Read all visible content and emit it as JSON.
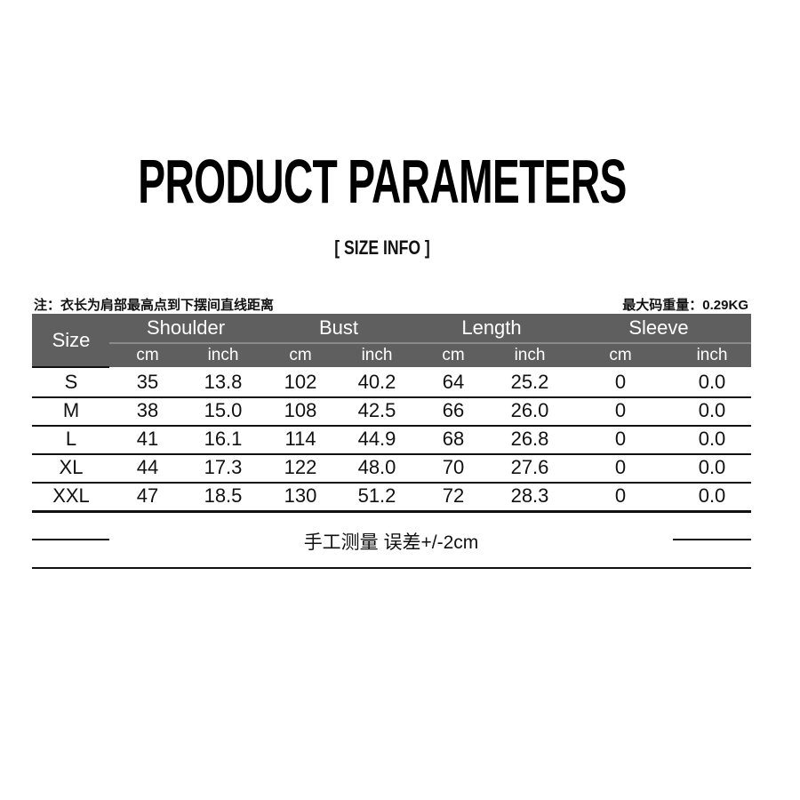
{
  "title": "PRODUCT PARAMETERS",
  "subtitle": "[ SIZE INFO ]",
  "note_left": "注：衣长为肩部最高点到下摆间直线距离",
  "note_right": "最大码重量：0.29KG",
  "table": {
    "size_header": "Size",
    "groups": [
      "Shoulder",
      "Bust",
      "Length",
      "Sleeve"
    ],
    "units": [
      "cm",
      "inch",
      "cm",
      "inch",
      "cm",
      "inch",
      "cm",
      "inch"
    ],
    "rows": [
      [
        "S",
        "35",
        "13.8",
        "102",
        "40.2",
        "64",
        "25.2",
        "0",
        "0.0"
      ],
      [
        "M",
        "38",
        "15.0",
        "108",
        "42.5",
        "66",
        "26.0",
        "0",
        "0.0"
      ],
      [
        "L",
        "41",
        "16.1",
        "114",
        "44.9",
        "68",
        "26.8",
        "0",
        "0.0"
      ],
      [
        "XL",
        "44",
        "17.3",
        "122",
        "48.0",
        "70",
        "27.6",
        "0",
        "0.0"
      ],
      [
        "XXL",
        "47",
        "18.5",
        "130",
        "51.2",
        "72",
        "28.3",
        "0",
        "0.0"
      ]
    ]
  },
  "footer": "手工测量 误差+/-2cm",
  "colors": {
    "header_bg": "#5f5f5f",
    "header_text": "#ffffff"
  }
}
